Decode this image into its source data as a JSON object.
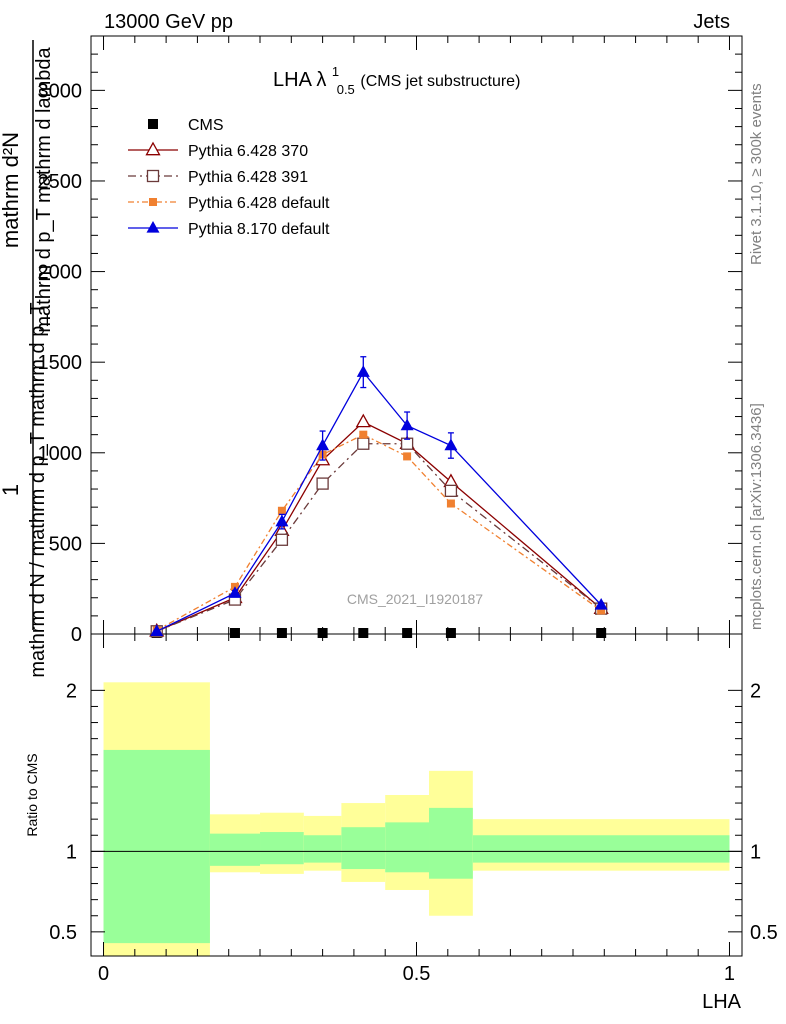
{
  "header": {
    "left": "13000 GeV pp",
    "right": "Jets"
  },
  "title": {
    "main": "LHA λ",
    "sup": "1",
    "sub": "0.5",
    "tail": " (CMS jet substructure)"
  },
  "side_labels": {
    "rivet": "Rivet 3.1.10, ≥ 300k events",
    "mcplots": "mcplots.cern.ch [arXiv:1306.3436]"
  },
  "watermark": "CMS_2021_I1920187",
  "ylabel_top": {
    "numerator": "mathrm d²N",
    "denominator_line1": "mathrm d p_T mathrm d lambda",
    "denominator_line2": "mathrm d N / mathrm d p_T mathrm d p_T",
    "one": "1"
  },
  "ratio_ylabel": "Ratio to CMS",
  "xlabel": "LHA",
  "colors": {
    "cms": "#000000",
    "p370": "#8b0000",
    "p391": "#6b3a3a",
    "pdef": "#f08030",
    "p8": "#0000dd",
    "band_yellow": "#ffff99",
    "band_green": "#99ff99"
  },
  "chart_data": {
    "type": "line",
    "xlim": [
      -0.02,
      1.02
    ],
    "ylim": [
      0,
      3300
    ],
    "x_ticks": [
      0,
      0.5,
      1
    ],
    "x_tick_labels": [
      "0",
      "0.5",
      "1"
    ],
    "y_ticks": [
      0,
      500,
      1000,
      1500,
      2000,
      2500,
      3000
    ],
    "y_tick_labels": [
      "0",
      "500",
      "1000",
      "1500",
      "2000",
      "2500",
      "3000"
    ],
    "legend_position": "top-left",
    "series": [
      {
        "name": "CMS",
        "key": "cms",
        "x": [
          0.085,
          0.21,
          0.285,
          0.35,
          0.415,
          0.485,
          0.555,
          0.795
        ],
        "y": [
          2,
          2,
          2,
          2,
          2,
          2,
          2,
          2
        ]
      },
      {
        "name": "Pythia 6.428 370",
        "key": "p370",
        "x": [
          0.085,
          0.21,
          0.285,
          0.35,
          0.415,
          0.485,
          0.555,
          0.795
        ],
        "y": [
          15,
          200,
          570,
          960,
          1170,
          1050,
          840,
          140
        ]
      },
      {
        "name": "Pythia 6.428 391",
        "key": "p391",
        "x": [
          0.085,
          0.21,
          0.285,
          0.35,
          0.415,
          0.485,
          0.555,
          0.795
        ],
        "y": [
          15,
          190,
          520,
          830,
          1050,
          1050,
          790,
          140
        ]
      },
      {
        "name": "Pythia 6.428 default",
        "key": "pdef",
        "x": [
          0.085,
          0.21,
          0.285,
          0.35,
          0.415,
          0.485,
          0.555,
          0.795
        ],
        "y": [
          20,
          260,
          680,
          990,
          1100,
          980,
          720,
          130
        ]
      },
      {
        "name": "Pythia 8.170 default",
        "key": "p8",
        "x": [
          0.085,
          0.21,
          0.285,
          0.35,
          0.415,
          0.485,
          0.555,
          0.795
        ],
        "y": [
          15,
          225,
          620,
          1040,
          1445,
          1150,
          1040,
          160
        ],
        "yerr": [
          3,
          15,
          40,
          80,
          85,
          75,
          70,
          12
        ]
      }
    ],
    "ratio": {
      "ylim": [
        0.35,
        2.35
      ],
      "y_ticks": [
        0.5,
        1,
        2
      ],
      "y_tick_labels": [
        "0.5",
        "1",
        "2"
      ],
      "bins": [
        {
          "lo": 0.0,
          "hi": 0.17,
          "y_lo": 0.3,
          "y_hi": 2.05,
          "g_lo": 0.43,
          "g_hi": 1.63
        },
        {
          "lo": 0.17,
          "hi": 0.25,
          "y_lo": 0.87,
          "y_hi": 1.23,
          "g_lo": 0.91,
          "g_hi": 1.11
        },
        {
          "lo": 0.25,
          "hi": 0.32,
          "y_lo": 0.86,
          "y_hi": 1.24,
          "g_lo": 0.92,
          "g_hi": 1.12
        },
        {
          "lo": 0.32,
          "hi": 0.38,
          "y_lo": 0.88,
          "y_hi": 1.22,
          "g_lo": 0.93,
          "g_hi": 1.1
        },
        {
          "lo": 0.38,
          "hi": 0.45,
          "y_lo": 0.81,
          "y_hi": 1.3,
          "g_lo": 0.89,
          "g_hi": 1.15
        },
        {
          "lo": 0.45,
          "hi": 0.52,
          "y_lo": 0.76,
          "y_hi": 1.35,
          "g_lo": 0.87,
          "g_hi": 1.18
        },
        {
          "lo": 0.52,
          "hi": 0.59,
          "y_lo": 0.6,
          "y_hi": 1.5,
          "g_lo": 0.83,
          "g_hi": 1.27
        },
        {
          "lo": 0.59,
          "hi": 1.0,
          "y_lo": 0.88,
          "y_hi": 1.2,
          "g_lo": 0.93,
          "g_hi": 1.1
        }
      ]
    }
  }
}
